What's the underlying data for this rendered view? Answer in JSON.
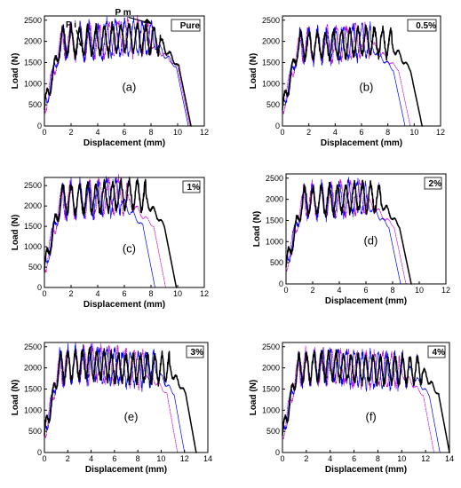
{
  "chart_data": [
    {
      "type": "line",
      "title": "",
      "panel_label": "(a)",
      "box_label": "Pure",
      "xlabel": "Displacement (mm)",
      "ylabel": "Load (N)",
      "xlim": [
        0,
        12
      ],
      "ylim": [
        0,
        2600
      ],
      "xticks": [
        0,
        2,
        4,
        6,
        8,
        10,
        12
      ],
      "yticks": [
        0,
        500,
        1000,
        1500,
        2000,
        2500
      ],
      "peak": 2400,
      "peak_x": 6.5,
      "end_x": [
        10.9,
        10.7,
        10.8
      ],
      "annotations": [
        "P i",
        "P m"
      ],
      "color_main": "#000000",
      "color_s1": "#0000ff",
      "color_s2": "#ff0000",
      "color_s3": "#cc00cc"
    },
    {
      "type": "line",
      "title": "",
      "panel_label": "(b)",
      "box_label": "0.5%",
      "xlabel": "Displacement (mm)",
      "ylabel": "Load (N)",
      "xlim": [
        0,
        12
      ],
      "ylim": [
        0,
        2600
      ],
      "xticks": [
        0,
        2,
        4,
        6,
        8,
        10,
        12
      ],
      "yticks": [
        0,
        500,
        1000,
        1500,
        2000,
        2500
      ],
      "peak": 2300,
      "peak_x": 6.5,
      "end_x": [
        10.5,
        9.2,
        9.6
      ],
      "annotations": [],
      "color_main": "#000000",
      "color_s1": "#0000ff",
      "color_s2": "#ff0000",
      "color_s3": "#cc00cc"
    },
    {
      "type": "line",
      "title": "",
      "panel_label": "(c)",
      "box_label": "1%",
      "xlabel": "Displacement (mm)",
      "ylabel": "Load (N)",
      "xlim": [
        0,
        12
      ],
      "ylim": [
        0,
        2700
      ],
      "xticks": [
        0,
        2,
        4,
        6,
        8,
        10,
        12
      ],
      "yticks": [
        0,
        500,
        1000,
        1500,
        2000,
        2500
      ],
      "peak": 2600,
      "peak_x": 6.3,
      "end_x": [
        9.8,
        8.2,
        9.0
      ],
      "annotations": [],
      "color_main": "#000000",
      "color_s1": "#0000ff",
      "color_s2": "#ff0000",
      "color_s3": "#cc00cc"
    },
    {
      "type": "line",
      "title": "",
      "panel_label": "(d)",
      "box_label": "2%",
      "xlabel": "Displacement (mm)",
      "ylabel": "Load (N)",
      "xlim": [
        0,
        12
      ],
      "ylim": [
        0,
        2600
      ],
      "xticks": [
        0,
        2,
        4,
        6,
        8,
        10,
        12
      ],
      "yticks": [
        0,
        500,
        1000,
        1500,
        2000,
        2500
      ],
      "peak": 2350,
      "peak_x": 5.5,
      "end_x": [
        9.3,
        8.5,
        8.9
      ],
      "annotations": [],
      "color_main": "#000000",
      "color_s1": "#0000ff",
      "color_s2": "#ff0000",
      "color_s3": "#cc00cc"
    },
    {
      "type": "line",
      "title": "",
      "panel_label": "(e)",
      "box_label": "3%",
      "xlabel": "Displacement (mm)",
      "ylabel": "Load (N)",
      "xlim": [
        0,
        14
      ],
      "ylim": [
        0,
        2600
      ],
      "xticks": [
        0,
        2,
        4,
        6,
        8,
        10,
        12,
        14
      ],
      "yticks": [
        0,
        500,
        1000,
        1500,
        2000,
        2500
      ],
      "peak": 2400,
      "peak_x": 3.8,
      "end_x": [
        12.9,
        11.9,
        11.3
      ],
      "annotations": [],
      "color_main": "#000000",
      "color_s1": "#0000ff",
      "color_s2": "#ff0000",
      "color_s3": "#cc00cc"
    },
    {
      "type": "line",
      "title": "",
      "panel_label": "(f)",
      "box_label": "4%",
      "xlabel": "Displacement (mm)",
      "ylabel": "Load (N)",
      "xlim": [
        0,
        14
      ],
      "ylim": [
        0,
        2600
      ],
      "xticks": [
        0,
        2,
        4,
        6,
        8,
        10,
        12,
        14
      ],
      "yticks": [
        0,
        500,
        1000,
        1500,
        2000,
        2500
      ],
      "peak": 2350,
      "peak_x": 3.9,
      "end_x": [
        13.9,
        13.1,
        12.6
      ],
      "annotations": [],
      "color_main": "#000000",
      "color_s1": "#0000ff",
      "color_s2": "#ff0000",
      "color_s3": "#cc00cc"
    }
  ]
}
